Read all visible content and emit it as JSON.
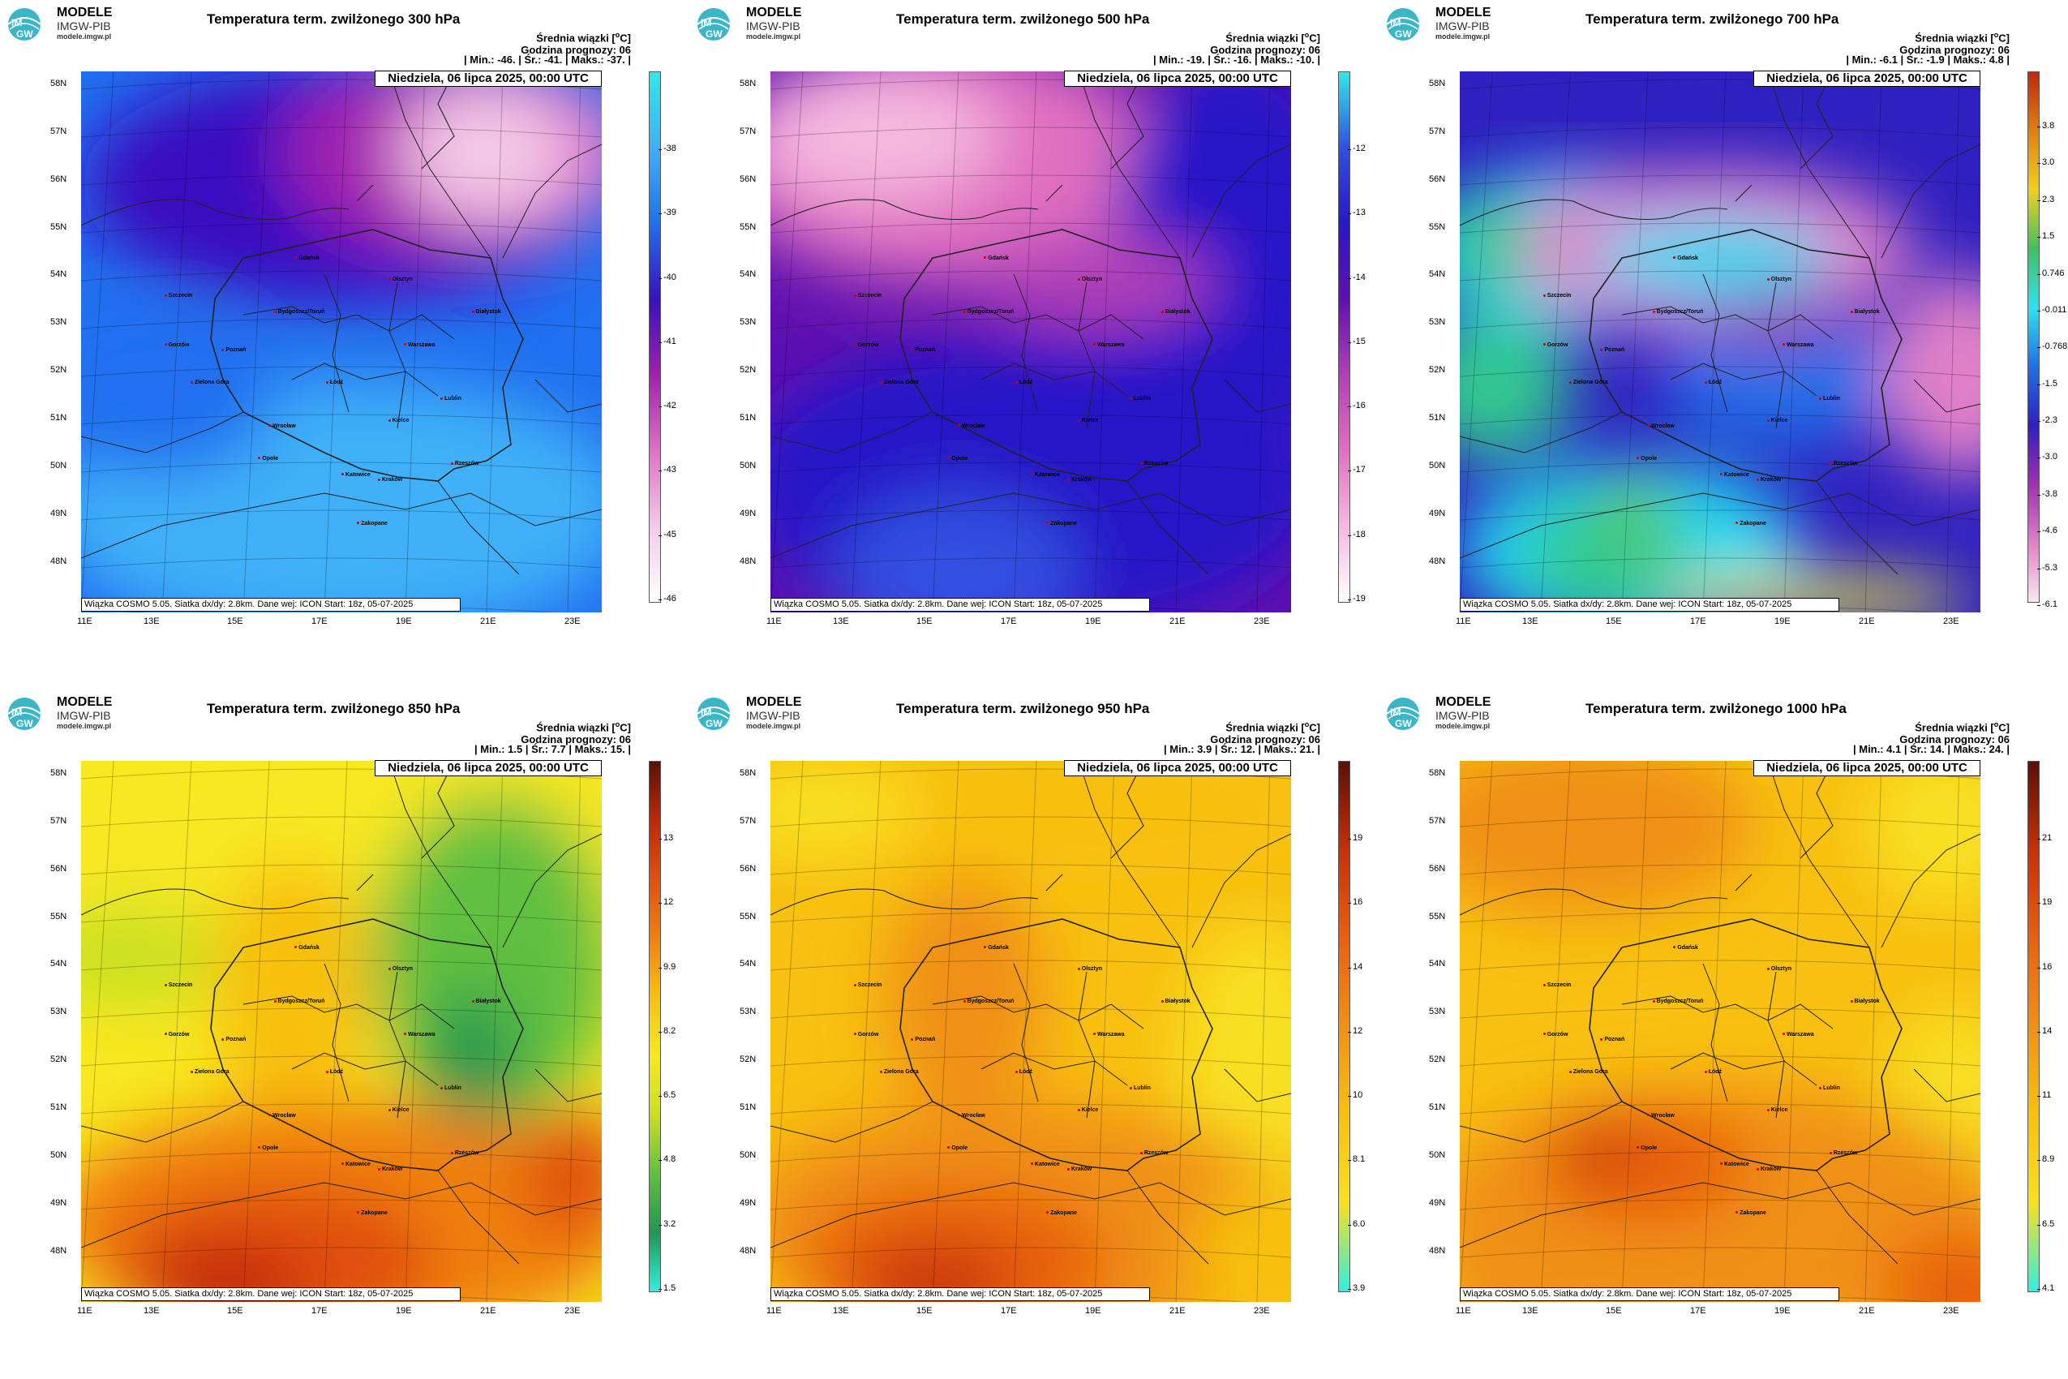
{
  "brand": {
    "line1": "MODELE",
    "line2": "IMGW-PIB",
    "line3": "modele.imgw.pl",
    "logo_top": "IM",
    "logo_bottom": "GW"
  },
  "header": {
    "mean_label": "Średnia wiązki [",
    "unit_sup": "o",
    "unit_tail": "C]",
    "forecast_hour": "Godzina prognozy: 06"
  },
  "date": "Niedziela, 06 lipca 2025, 00:00 UTC",
  "footer": "Wiązka  COSMO  5.05.  Siatka  dx/dy:  2.8km.  Dane  wej:  ICON  Start:  18z,  05-07-2025",
  "lat_labels": [
    "58N",
    "57N",
    "56N",
    "55N",
    "54N",
    "53N",
    "52N",
    "51N",
    "50N",
    "49N",
    "48N"
  ],
  "lon_labels": [
    "11E",
    "13E",
    "15E",
    "17E",
    "19E",
    "21E",
    "23E"
  ],
  "panels": [
    {
      "title": "Temperatura term. zwilżonego 300 hPa",
      "stats": "| Min.:    -46. | Śr.:    -41. | Maks.:   -37. |",
      "cbar": [
        "-38",
        "-39",
        "-40",
        "-41",
        "-42",
        "-43",
        "-45",
        "-46"
      ],
      "palette": "cold1"
    },
    {
      "title": "Temperatura term. zwilżonego 500 hPa",
      "stats": "| Min.:    -19. | Śr.:    -16. | Maks.:   -10. |",
      "cbar": [
        "-12",
        "-13",
        "-14",
        "-15",
        "-16",
        "-17",
        "-18",
        "-19"
      ],
      "palette": "cold2"
    },
    {
      "title": "Temperatura term. zwilżonego 700 hPa",
      "stats": "| Min.:    -6.1 | Śr.:    -1.9 | Maks.:   4.8 |",
      "cbar": [
        "3.8",
        "3.0",
        "2.3",
        "1.5",
        "0.746",
        "-0.011",
        "-0.768",
        "-1.5",
        "-2.3",
        "-3.0",
        "-3.8",
        "-4.6",
        "-5.3",
        "-6.1"
      ],
      "palette": "mixed"
    },
    {
      "title": "Temperatura term. zwilżonego 850 hPa",
      "stats": "| Min.:    1.5 | Śr.:    7.7 | Maks.:   15. |",
      "cbar": [
        "13",
        "12",
        "9.9",
        "8.2",
        "6.5",
        "4.8",
        "3.2",
        "1.5"
      ],
      "palette": "warm1"
    },
    {
      "title": "Temperatura term. zwilżonego 950 hPa",
      "stats": "| Min.:    3.9 | Śr.:    12. | Maks.:   21. |",
      "cbar": [
        "19",
        "16",
        "14",
        "12",
        "10",
        "8.1",
        "6.0",
        "3.9"
      ],
      "palette": "warm2"
    },
    {
      "title": "Temperatura term. zwilżonego 1000 hPa",
      "stats": "| Min.:    4.1 | Śr.:    14. | Maks.:   24. |",
      "cbar": [
        "21",
        "19",
        "16",
        "14",
        "11",
        "8.9",
        "6.5",
        "4.1"
      ],
      "palette": "warm3"
    }
  ],
  "cities": [
    "Gdańsk",
    "Olsztyn",
    "Szczecin",
    "Bydgoszcz/Toruń",
    "Białystok",
    "Gorzów",
    "Poznań",
    "Warszawa",
    "Zielona Góra",
    "Łódź",
    "Lublin",
    "Wrocław",
    "Kielce",
    "Opole",
    "Katowice",
    "Kraków",
    "Rzeszów",
    "Zakopane"
  ],
  "colors": {
    "cold1": [
      "#f3c9e8",
      "#e070c8",
      "#a020b0",
      "#3a10c0",
      "#2070f0",
      "#40b0f8"
    ],
    "cold2": [
      "#f5b8e0",
      "#e070c0",
      "#b040b8",
      "#6010b0",
      "#2818c8",
      "#3050e0"
    ],
    "mixed": [
      "#e080c8",
      "#a030b0",
      "#3020c0",
      "#2070e8",
      "#20d8f0",
      "#30c890",
      "#60c840",
      "#d8e040"
    ],
    "warm1": [
      "#c02808",
      "#e05010",
      "#f08010",
      "#f8c010",
      "#f8e820",
      "#c8e020",
      "#60c040",
      "#209850"
    ],
    "warm2": [
      "#c83008",
      "#e86010",
      "#f09018",
      "#f8c010",
      "#f8e020"
    ],
    "warm3": [
      "#c83008",
      "#e86010",
      "#f09018",
      "#f8c010",
      "#f8e020"
    ]
  }
}
